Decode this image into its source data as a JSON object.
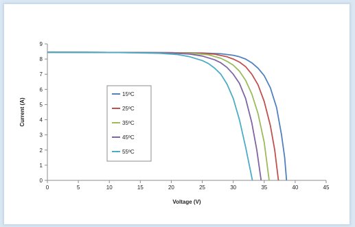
{
  "chart_data": {
    "type": "line",
    "title": "",
    "xlabel": "Voltage (V)",
    "ylabel": "Current (A)",
    "xlim": [
      0,
      45
    ],
    "ylim": [
      0,
      9
    ],
    "x_ticks": [
      "0",
      "5",
      "10",
      "15",
      "20",
      "25",
      "30",
      "35",
      "40",
      "45"
    ],
    "y_ticks": [
      "0",
      "1",
      "2",
      "3",
      "4",
      "5",
      "6",
      "7",
      "8",
      "9"
    ],
    "grid": false,
    "legend_position": "left",
    "series": [
      {
        "name": "15ºC",
        "color": "#4f81bd",
        "points": [
          [
            0,
            8.45
          ],
          [
            10,
            8.44
          ],
          [
            20,
            8.42
          ],
          [
            25,
            8.4
          ],
          [
            28,
            8.35
          ],
          [
            30,
            8.25
          ],
          [
            31,
            8.15
          ],
          [
            32,
            8.0
          ],
          [
            33,
            7.75
          ],
          [
            34,
            7.4
          ],
          [
            35,
            6.9
          ],
          [
            36,
            6.1
          ],
          [
            37,
            4.8
          ],
          [
            37.8,
            3.0
          ],
          [
            38.3,
            1.5
          ],
          [
            38.6,
            0
          ]
        ]
      },
      {
        "name": "25ºC",
        "color": "#c0504d",
        "points": [
          [
            0,
            8.45
          ],
          [
            10,
            8.44
          ],
          [
            20,
            8.42
          ],
          [
            25,
            8.38
          ],
          [
            27,
            8.32
          ],
          [
            29,
            8.15
          ],
          [
            30,
            8.0
          ],
          [
            31,
            7.8
          ],
          [
            32,
            7.5
          ],
          [
            33,
            7.0
          ],
          [
            34,
            6.3
          ],
          [
            35,
            5.2
          ],
          [
            36,
            3.6
          ],
          [
            36.7,
            2.0
          ],
          [
            37.3,
            0
          ]
        ]
      },
      {
        "name": "35ºC",
        "color": "#9bbb59",
        "points": [
          [
            0,
            8.45
          ],
          [
            10,
            8.44
          ],
          [
            20,
            8.41
          ],
          [
            24,
            8.36
          ],
          [
            26,
            8.28
          ],
          [
            28,
            8.05
          ],
          [
            29,
            7.85
          ],
          [
            30,
            7.6
          ],
          [
            31,
            7.2
          ],
          [
            32,
            6.6
          ],
          [
            33,
            5.7
          ],
          [
            34,
            4.4
          ],
          [
            35,
            2.5
          ],
          [
            35.8,
            0
          ]
        ]
      },
      {
        "name": "45ºC",
        "color": "#8064a2",
        "points": [
          [
            0,
            8.45
          ],
          [
            10,
            8.44
          ],
          [
            20,
            8.4
          ],
          [
            23,
            8.33
          ],
          [
            25,
            8.2
          ],
          [
            27,
            7.95
          ],
          [
            28,
            7.75
          ],
          [
            29,
            7.45
          ],
          [
            30,
            7.0
          ],
          [
            31,
            6.4
          ],
          [
            32,
            5.4
          ],
          [
            33,
            3.8
          ],
          [
            33.8,
            2.0
          ],
          [
            34.5,
            0
          ]
        ]
      },
      {
        "name": "55ºC",
        "color": "#4bacc6",
        "points": [
          [
            0,
            8.45
          ],
          [
            10,
            8.44
          ],
          [
            18,
            8.38
          ],
          [
            21,
            8.3
          ],
          [
            23,
            8.15
          ],
          [
            25,
            7.9
          ],
          [
            26,
            7.7
          ],
          [
            27,
            7.4
          ],
          [
            28,
            7.0
          ],
          [
            29,
            6.35
          ],
          [
            30,
            5.4
          ],
          [
            31,
            4.0
          ],
          [
            32,
            2.2
          ],
          [
            33.1,
            0
          ]
        ]
      }
    ]
  }
}
